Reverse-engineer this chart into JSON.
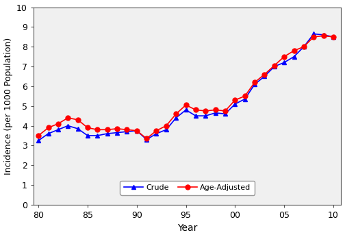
{
  "years": [
    1980,
    1981,
    1982,
    1983,
    1984,
    1985,
    1986,
    1987,
    1988,
    1989,
    1990,
    1991,
    1992,
    1993,
    1994,
    1995,
    1996,
    1997,
    1998,
    1999,
    2000,
    2001,
    2002,
    2003,
    2004,
    2005,
    2006,
    2007,
    2008,
    2009,
    2010
  ],
  "crude": [
    3.25,
    3.6,
    3.8,
    4.0,
    3.85,
    3.5,
    3.5,
    3.6,
    3.65,
    3.7,
    3.75,
    3.3,
    3.6,
    3.8,
    4.4,
    4.8,
    4.5,
    4.5,
    4.65,
    4.6,
    5.1,
    5.35,
    6.1,
    6.5,
    7.0,
    7.2,
    7.5,
    8.0,
    8.65,
    8.6,
    8.5
  ],
  "age_adjusted": [
    3.5,
    3.9,
    4.1,
    4.4,
    4.3,
    3.9,
    3.8,
    3.8,
    3.85,
    3.8,
    3.75,
    3.35,
    3.75,
    4.0,
    4.6,
    5.05,
    4.8,
    4.75,
    4.8,
    4.75,
    5.3,
    5.5,
    6.2,
    6.6,
    7.05,
    7.5,
    7.8,
    8.0,
    8.5,
    8.55,
    8.5
  ],
  "crude_color": "#0000ff",
  "age_adjusted_color": "#ff0000",
  "plot_bg_color": "#f0f0f0",
  "fig_bg_color": "#ffffff",
  "ylabel": "Incidence (per 1000 Population)",
  "xlabel": "Year",
  "ylim": [
    0,
    10
  ],
  "xlim": [
    1979.5,
    2010.8
  ],
  "yticks": [
    0,
    1,
    2,
    3,
    4,
    5,
    6,
    7,
    8,
    9,
    10
  ],
  "xticks": [
    1980,
    1985,
    1990,
    1995,
    2000,
    2005,
    2010
  ],
  "xticklabels": [
    "80",
    "85",
    "90",
    "95",
    "00",
    "05",
    "10"
  ],
  "legend_crude": "Crude",
  "legend_age": "Age-Adjusted",
  "line_width": 1.2,
  "marker_size": 5,
  "tick_labelsize": 9,
  "axis_labelsize": 10,
  "legend_fontsize": 8
}
